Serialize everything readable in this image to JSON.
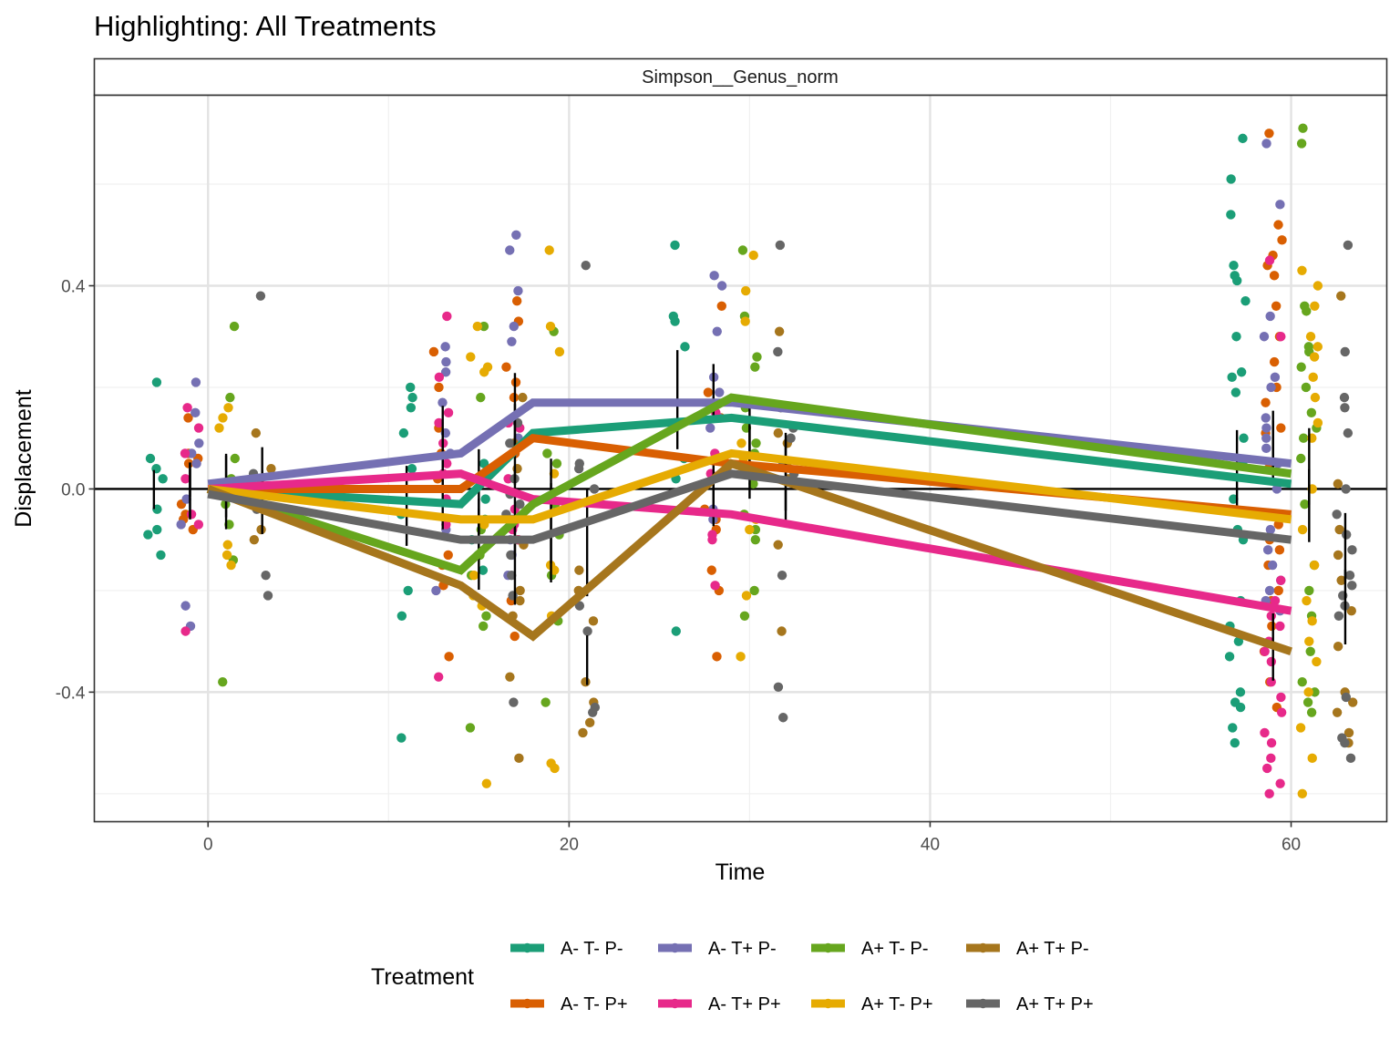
{
  "chart_data": {
    "type": "line",
    "title": "Highlighting: All Treatments",
    "facet_label": "Simpson__Genus_norm",
    "xlabel": "Time",
    "ylabel": "Displacement",
    "xlim": [
      -6.3,
      65.3
    ],
    "ylim": [
      -0.655,
      0.775
    ],
    "x_ticks": [
      0,
      20,
      40,
      60
    ],
    "x_tick_labels": [
      "0",
      "20",
      "40",
      "60"
    ],
    "y_ticks": [
      -0.4,
      0.0,
      0.4
    ],
    "y_tick_labels": [
      "-0.4",
      "0.0",
      "0.4"
    ],
    "grid": true,
    "reference_line_y": 0.0,
    "legend": {
      "title": "Treatment",
      "position": "bottom"
    },
    "series": [
      {
        "name": "A- T- P-",
        "color": "#1B9E77",
        "dodge": -3,
        "x": [
          0,
          14,
          18,
          29,
          60
        ],
        "y": [
          0.0,
          -0.03,
          0.11,
          0.14,
          0.01
        ],
        "points": {
          "0": [
            0.21,
            0.06,
            0.04,
            0.02,
            -0.04,
            -0.08,
            -0.09,
            -0.13
          ],
          "14": [
            0.2,
            0.18,
            0.16,
            0.11,
            0.04,
            -0.05,
            -0.2,
            -0.25,
            -0.49
          ],
          "18": [
            0.05,
            -0.02,
            -0.06,
            -0.1,
            -0.13,
            -0.16
          ],
          "29": [
            0.48,
            0.34,
            0.33,
            0.28,
            0.06,
            0.02,
            -0.28
          ],
          "60": [
            0.69,
            0.61,
            0.54,
            0.44,
            0.42,
            0.41,
            0.37,
            0.3,
            0.23,
            0.22,
            0.19,
            0.1,
            0.05,
            -0.02,
            -0.08,
            -0.1,
            -0.22,
            -0.27,
            -0.3,
            -0.33,
            -0.4,
            -0.42,
            -0.43,
            -0.47,
            -0.5
          ]
        }
      },
      {
        "name": "A- T- P+",
        "color": "#D95F02",
        "dodge": -1,
        "x": [
          0,
          14,
          18,
          29,
          60
        ],
        "y": [
          0.0,
          0.0,
          0.1,
          0.05,
          -0.05
        ],
        "points": {
          "0": [
            0.14,
            0.07,
            0.06,
            0.05,
            -0.03,
            -0.05,
            -0.06,
            -0.08
          ],
          "14": [
            0.27,
            0.2,
            0.12,
            0.07,
            0.02,
            -0.13,
            -0.15,
            -0.19,
            -0.33
          ],
          "18": [
            0.37,
            0.33,
            0.24,
            0.21,
            0.18,
            0.07,
            -0.1,
            -0.22,
            -0.29
          ],
          "29": [
            0.36,
            0.19,
            0.16,
            0.14,
            0.06,
            -0.04,
            -0.06,
            -0.08,
            -0.16,
            -0.2,
            -0.33
          ],
          "60": [
            0.7,
            0.52,
            0.49,
            0.46,
            0.44,
            0.42,
            0.36,
            0.3,
            0.25,
            0.2,
            0.17,
            0.12,
            0.11,
            0.04,
            -0.05,
            -0.07,
            -0.1,
            -0.12,
            -0.15,
            -0.2,
            -0.22,
            -0.27,
            -0.32,
            -0.38,
            -0.43
          ]
        }
      },
      {
        "name": "A- T+ P-",
        "color": "#7570B3",
        "dodge": -1,
        "x": [
          0,
          14,
          18,
          29,
          60
        ],
        "y": [
          0.01,
          0.07,
          0.17,
          0.17,
          0.05
        ],
        "points": {
          "0": [
            0.21,
            0.15,
            0.09,
            0.07,
            0.05,
            -0.02,
            -0.07,
            -0.23,
            -0.27
          ],
          "14": [
            0.28,
            0.25,
            0.23,
            0.17,
            0.11,
            0.07,
            -0.08,
            -0.2
          ],
          "18": [
            0.5,
            0.47,
            0.39,
            0.32,
            0.29,
            0.1,
            0.07,
            -0.06,
            -0.1,
            -0.13,
            -0.17
          ],
          "29": [
            0.42,
            0.4,
            0.31,
            0.22,
            0.19,
            0.14,
            0.12,
            -0.04,
            -0.06
          ],
          "60": [
            0.68,
            0.56,
            0.34,
            0.3,
            0.22,
            0.2,
            0.14,
            0.12,
            0.1,
            0.08,
            0.05,
            0.0,
            -0.05,
            -0.08,
            -0.12,
            -0.15,
            -0.18,
            -0.2,
            -0.22,
            -0.24
          ]
        }
      },
      {
        "name": "A- T+ P+",
        "color": "#E7298A",
        "dodge": -1,
        "x": [
          0,
          14,
          18,
          29,
          60
        ],
        "y": [
          0.0,
          0.03,
          -0.02,
          -0.05,
          -0.24
        ],
        "points": {
          "0": [
            0.16,
            0.12,
            0.07,
            0.02,
            -0.05,
            -0.07,
            -0.28
          ],
          "14": [
            0.34,
            0.22,
            0.15,
            0.13,
            0.09,
            0.05,
            0.03,
            -0.02,
            -0.07,
            -0.37
          ],
          "18": [
            0.13,
            0.12,
            0.06,
            0.02,
            -0.04,
            -0.07,
            -0.08,
            -0.1
          ],
          "29": [
            0.15,
            0.07,
            0.03,
            -0.09,
            -0.1,
            -0.19
          ],
          "60": [
            0.45,
            0.3,
            -0.18,
            -0.22,
            -0.25,
            -0.27,
            -0.3,
            -0.32,
            -0.34,
            -0.38,
            -0.41,
            -0.44,
            -0.48,
            -0.5,
            -0.53,
            -0.55,
            -0.58,
            -0.6
          ]
        }
      },
      {
        "name": "A+ T- P-",
        "color": "#66A61E",
        "dodge": 1,
        "x": [
          0,
          14,
          18,
          29,
          60
        ],
        "y": [
          0.0,
          -0.16,
          -0.03,
          0.18,
          0.03
        ],
        "points": {
          "0": [
            0.32,
            0.18,
            0.06,
            0.02,
            -0.03,
            -0.07,
            -0.14,
            -0.38
          ],
          "14": [
            0.32,
            0.18,
            -0.08,
            -0.13,
            -0.17,
            -0.25,
            -0.27,
            -0.47
          ],
          "18": [
            0.31,
            0.07,
            0.05,
            -0.03,
            -0.09,
            -0.17,
            -0.26,
            -0.42
          ],
          "29": [
            0.47,
            0.34,
            0.26,
            0.24,
            0.16,
            0.12,
            0.09,
            0.07,
            0.02,
            0.01,
            -0.05,
            -0.08,
            -0.1,
            -0.2,
            -0.25
          ],
          "60": [
            0.71,
            0.68,
            0.36,
            0.35,
            0.28,
            0.27,
            0.24,
            0.2,
            0.15,
            0.12,
            0.1,
            0.06,
            -0.03,
            -0.15,
            -0.2,
            -0.25,
            -0.32,
            -0.38,
            -0.4,
            -0.42,
            -0.44
          ]
        }
      },
      {
        "name": "A+ T- P+",
        "color": "#E6AB02",
        "dodge": 1,
        "x": [
          0,
          14,
          18,
          29,
          60
        ],
        "y": [
          0.0,
          -0.06,
          -0.06,
          0.07,
          -0.06
        ],
        "points": {
          "0": [
            0.16,
            0.14,
            0.12,
            -0.11,
            -0.13,
            -0.15
          ],
          "14": [
            0.32,
            0.26,
            0.24,
            0.23,
            -0.07,
            -0.17,
            -0.21,
            -0.23,
            -0.58
          ],
          "18": [
            0.47,
            0.32,
            0.27,
            0.03,
            -0.15,
            -0.16,
            -0.25,
            -0.54,
            -0.55
          ],
          "29": [
            0.46,
            0.39,
            0.33,
            0.09,
            0.06,
            -0.06,
            -0.08,
            -0.21,
            -0.33
          ],
          "60": [
            0.43,
            0.4,
            0.36,
            0.3,
            0.28,
            0.26,
            0.22,
            0.18,
            0.13,
            0.1,
            0.0,
            -0.08,
            -0.15,
            -0.22,
            -0.26,
            -0.3,
            -0.34,
            -0.4,
            -0.47,
            -0.53,
            -0.6
          ]
        }
      },
      {
        "name": "A+ T+ P-",
        "color": "#A6761D",
        "dodge": 3,
        "x": [
          0,
          14,
          18,
          29,
          60
        ],
        "y": [
          0.0,
          -0.19,
          -0.29,
          0.05,
          -0.32
        ],
        "points": {
          "0": [
            0.11,
            0.04,
            0.02,
            -0.08,
            -0.1
          ],
          "14": [
            0.18,
            0.09,
            0.04,
            -0.11,
            -0.2,
            -0.22,
            -0.25,
            -0.37,
            -0.53
          ],
          "18": [
            -0.16,
            -0.2,
            -0.26,
            -0.38,
            -0.42,
            -0.46,
            -0.48
          ],
          "29": [
            0.31,
            0.11,
            0.09,
            0.05,
            0.02,
            -0.11,
            -0.28
          ],
          "60": [
            0.38,
            0.01,
            -0.08,
            -0.13,
            -0.18,
            -0.24,
            -0.31,
            -0.4,
            -0.42,
            -0.44,
            -0.48,
            -0.5
          ]
        }
      },
      {
        "name": "A+ T+ P+",
        "color": "#666666",
        "dodge": 3,
        "x": [
          0,
          14,
          18,
          29,
          60
        ],
        "y": [
          -0.01,
          -0.1,
          -0.1,
          0.03,
          -0.1
        ],
        "points": {
          "0": [
            0.38,
            0.03,
            -0.01,
            -0.04,
            -0.17,
            -0.21
          ],
          "14": [
            0.13,
            0.09,
            0.02,
            -0.01,
            -0.03,
            -0.05,
            -0.13,
            -0.17,
            -0.21,
            -0.42
          ],
          "18": [
            0.44,
            0.05,
            0.04,
            0.0,
            -0.23,
            -0.28,
            -0.43,
            -0.44
          ],
          "29": [
            0.48,
            0.27,
            0.16,
            0.12,
            0.1,
            0.05,
            0.03,
            -0.17,
            -0.39,
            -0.45
          ],
          "60": [
            0.48,
            0.27,
            0.18,
            0.16,
            0.11,
            0.0,
            -0.05,
            -0.09,
            -0.12,
            -0.17,
            -0.19,
            -0.21,
            -0.23,
            -0.25,
            -0.41,
            -0.49,
            -0.5,
            -0.53
          ]
        }
      }
    ]
  }
}
